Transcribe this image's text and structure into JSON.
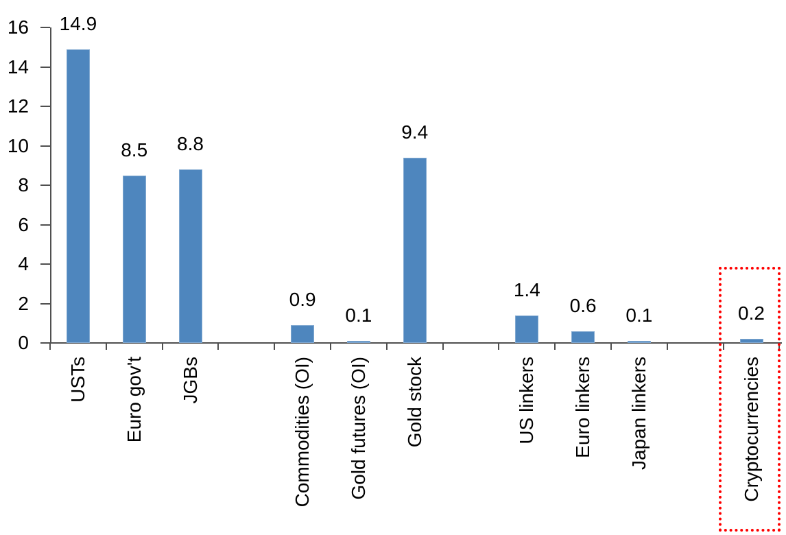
{
  "chart_data": {
    "type": "bar",
    "title": "",
    "xlabel": "",
    "ylabel": "",
    "categories": [
      "USTs",
      "Euro gov't",
      "JGBs",
      "",
      "Commodities (OI)",
      "Gold futures (OI)",
      "Gold stock",
      "",
      "US linkers",
      "Euro linkers",
      "Japan linkers",
      "",
      "Cryptocurrencies"
    ],
    "values": [
      14.9,
      8.5,
      8.8,
      null,
      0.9,
      0.1,
      9.4,
      null,
      1.4,
      0.6,
      0.1,
      null,
      0.2
    ],
    "data_labels": [
      "14.9",
      "8.5",
      "8.8",
      "",
      "0.9",
      "0.1",
      "9.4",
      "",
      "1.4",
      "0.6",
      "0.1",
      "",
      "0.2"
    ],
    "y_ticks": [
      0,
      2,
      4,
      6,
      8,
      10,
      12,
      14,
      16
    ],
    "ylim": [
      0,
      16
    ],
    "grid": "off",
    "legend": "none",
    "bar_color": "#4E86BE",
    "axis_color": "#4F4F4F",
    "label_color": "#000000",
    "highlight": {
      "target": "Cryptocurrencies",
      "shape": "dotted-rectangle",
      "color": "#FF0000"
    }
  }
}
